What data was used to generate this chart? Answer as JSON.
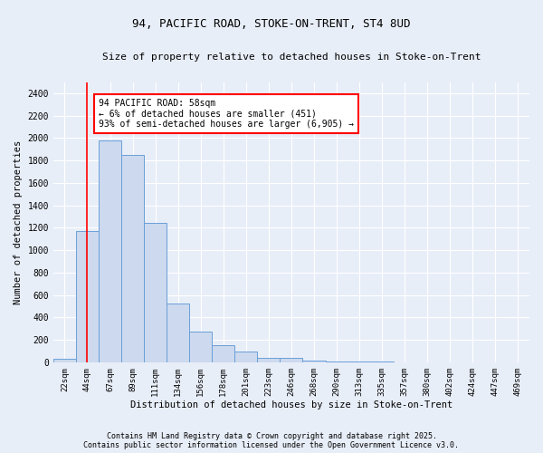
{
  "title1": "94, PACIFIC ROAD, STOKE-ON-TRENT, ST4 8UD",
  "title2": "Size of property relative to detached houses in Stoke-on-Trent",
  "xlabel": "Distribution of detached houses by size in Stoke-on-Trent",
  "ylabel": "Number of detached properties",
  "bar_labels": [
    "22sqm",
    "44sqm",
    "67sqm",
    "89sqm",
    "111sqm",
    "134sqm",
    "156sqm",
    "178sqm",
    "201sqm",
    "223sqm",
    "246sqm",
    "268sqm",
    "290sqm",
    "313sqm",
    "335sqm",
    "357sqm",
    "380sqm",
    "402sqm",
    "424sqm",
    "447sqm",
    "469sqm"
  ],
  "bar_values": [
    30,
    1170,
    1980,
    1850,
    1240,
    520,
    270,
    155,
    95,
    40,
    38,
    18,
    8,
    5,
    3,
    2,
    2,
    2,
    1,
    1,
    1
  ],
  "bar_color": "#ccd9ee",
  "bar_edge_color": "#6a9fd8",
  "vline_color": "red",
  "vline_x": 1.0,
  "annotation_text": "94 PACIFIC ROAD: 58sqm\n← 6% of detached houses are smaller (451)\n93% of semi-detached houses are larger (6,905) →",
  "annotation_box_color": "white",
  "annotation_box_edge": "red",
  "ylim": [
    0,
    2500
  ],
  "yticks": [
    0,
    200,
    400,
    600,
    800,
    1000,
    1200,
    1400,
    1600,
    1800,
    2000,
    2200,
    2400
  ],
  "bg_color": "#e8eef8",
  "grid_color": "white",
  "footer1": "Contains HM Land Registry data © Crown copyright and database right 2025.",
  "footer2": "Contains public sector information licensed under the Open Government Licence v3.0."
}
